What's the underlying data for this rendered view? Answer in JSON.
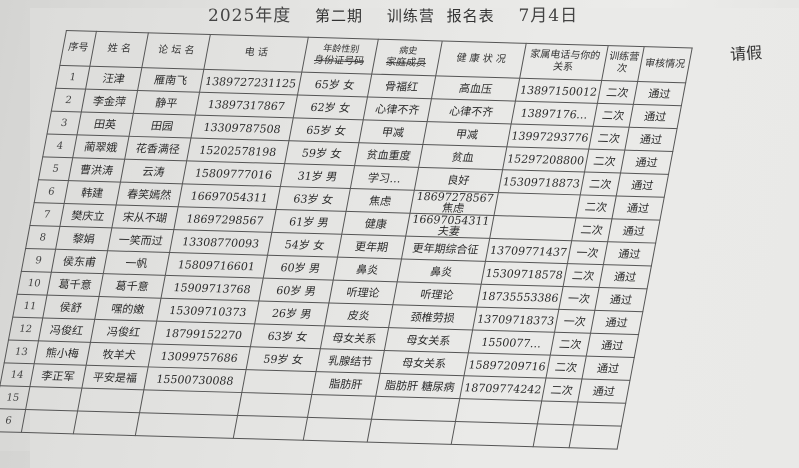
{
  "title": {
    "year": "2025年度",
    "period": "第二期",
    "camp": "训练营",
    "form": "报名表",
    "date": "7月4日"
  },
  "side_note": "请假",
  "columns": [
    {
      "label": "序号"
    },
    {
      "label": "姓 名"
    },
    {
      "label": "论 坛 名"
    },
    {
      "label": "电 话"
    },
    {
      "label": "身份证号码",
      "handwritten_over": "年龄性别"
    },
    {
      "label": "家庭成员",
      "handwritten_over": "病史"
    },
    {
      "label": "健 康 状 况"
    },
    {
      "label": "家属电话与你的关系"
    },
    {
      "label": "训练营次"
    },
    {
      "label": "审核情况"
    }
  ],
  "rows": [
    [
      "1",
      "汪津",
      "雁南飞",
      "1389727231125",
      "65岁 女",
      "骨福红",
      "高血压",
      "13897150012",
      "二次",
      "通过"
    ],
    [
      "2",
      "李金萍",
      "静平",
      "13897317867",
      "62岁 女",
      "心律不齐",
      "心律不齐",
      "13897176…",
      "二次",
      "通过"
    ],
    [
      "3",
      "田英",
      "田园",
      "13309787508",
      "65岁 女",
      "甲减",
      "甲减",
      "13997293776",
      "二次",
      "通过"
    ],
    [
      "4",
      "蔺翠娥",
      "花香满径",
      "15202578198",
      "59岁 女",
      "贫血重度",
      "贫血",
      "15297208800",
      "二次",
      "通过"
    ],
    [
      "5",
      "曹洪涛",
      "云涛",
      "15809777016",
      "31岁 男",
      "学习…",
      "良好",
      "15309718873",
      "二次",
      "通过"
    ],
    [
      "6",
      "韩建",
      "春笑嫣然",
      "16697054311",
      "63岁 女",
      "焦虑",
      "18697278567 焦虑",
      "",
      "二次",
      "通过"
    ],
    [
      "7",
      "樊庆立",
      "宋从不瑚",
      "18697298567",
      "61岁 男",
      "健康",
      "16697054311 夫妻",
      "",
      "二次",
      "通过"
    ],
    [
      "8",
      "黎娟",
      "一笑而过",
      "13308770093",
      "54岁 女",
      "更年期",
      "更年期综合征",
      "13709771437",
      "一次",
      "通过"
    ],
    [
      "9",
      "侯东甫",
      "一帆",
      "15809716601",
      "60岁 男",
      "鼻炎",
      "鼻炎",
      "15309718578",
      "二次",
      "通过"
    ],
    [
      "10",
      "葛千意",
      "葛千意",
      "15909713768",
      "60岁 男",
      "听理论",
      "听理论",
      "18735553386",
      "一次",
      "通过"
    ],
    [
      "11",
      "侯舒",
      "嘿的嫩",
      "15309710373",
      "26岁 男",
      "皮炎",
      "颈椎劳损",
      "13709718373",
      "一次",
      "通过"
    ],
    [
      "12",
      "冯俊红",
      "冯俊红",
      "18799152270",
      "63岁 女",
      "母女关系",
      "母女关系",
      "1550077…",
      "二次",
      "通过"
    ],
    [
      "13",
      "熊小梅",
      "牧羊犬",
      "13099757686",
      "59岁 女",
      "乳腺结节",
      "母女关系",
      "15897209716",
      "二次",
      "通过"
    ],
    [
      "14",
      "李正军",
      "平安是福",
      "15500730088",
      "",
      "脂肪肝",
      "脂肪肝 糖尿病",
      "18709774242",
      "二次",
      "通过"
    ],
    [
      "15",
      "",
      "",
      "",
      "",
      "",
      "",
      "",
      "",
      ""
    ],
    [
      "6",
      "",
      "",
      "",
      "",
      "",
      "",
      "",
      "",
      ""
    ]
  ]
}
